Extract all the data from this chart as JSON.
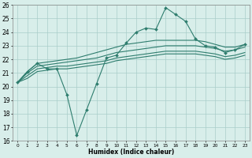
{
  "x": [
    0,
    1,
    2,
    3,
    4,
    5,
    6,
    7,
    8,
    9,
    10,
    11,
    12,
    13,
    14,
    15,
    16,
    17,
    18,
    19,
    20,
    21,
    22,
    23
  ],
  "line_jagged": [
    20.3,
    21.1,
    21.7,
    21.3,
    21.3,
    19.4,
    16.4,
    18.3,
    20.2,
    22.1,
    22.3,
    23.2,
    24.0,
    24.3,
    24.2,
    25.8,
    25.3,
    24.8,
    23.5,
    23.0,
    22.9,
    22.5,
    22.7,
    23.1
  ],
  "line_top": [
    20.3,
    21.1,
    21.7,
    21.8,
    21.9,
    22.0,
    22.1,
    22.3,
    22.5,
    22.7,
    22.9,
    23.1,
    23.2,
    23.3,
    23.4,
    23.4,
    23.4,
    23.4,
    23.4,
    23.3,
    23.1,
    22.9,
    22.9,
    23.1
  ],
  "line_upper": [
    20.3,
    21.0,
    21.5,
    21.6,
    21.7,
    21.8,
    21.9,
    22.0,
    22.1,
    22.3,
    22.5,
    22.6,
    22.7,
    22.8,
    22.9,
    23.0,
    23.0,
    23.0,
    23.0,
    22.9,
    22.8,
    22.6,
    22.7,
    22.9
  ],
  "line_lower": [
    20.3,
    20.8,
    21.3,
    21.4,
    21.5,
    21.5,
    21.6,
    21.7,
    21.8,
    21.9,
    22.1,
    22.2,
    22.3,
    22.4,
    22.5,
    22.6,
    22.6,
    22.6,
    22.6,
    22.5,
    22.4,
    22.2,
    22.3,
    22.5
  ],
  "line_bottom": [
    20.3,
    20.6,
    21.1,
    21.2,
    21.3,
    21.3,
    21.4,
    21.5,
    21.6,
    21.7,
    21.9,
    22.0,
    22.1,
    22.2,
    22.3,
    22.4,
    22.4,
    22.4,
    22.4,
    22.3,
    22.2,
    22.0,
    22.1,
    22.3
  ],
  "color": "#2e7d6e",
  "bg_color": "#d8eeea",
  "grid_color": "#aaceca",
  "xlabel": "Humidex (Indice chaleur)",
  "ylim": [
    16,
    26
  ],
  "xlim": [
    -0.5,
    23.5
  ],
  "yticks": [
    16,
    17,
    18,
    19,
    20,
    21,
    22,
    23,
    24,
    25,
    26
  ],
  "xticks": [
    0,
    1,
    2,
    3,
    4,
    5,
    6,
    7,
    8,
    9,
    10,
    11,
    12,
    13,
    14,
    15,
    16,
    17,
    18,
    19,
    20,
    21,
    22,
    23
  ]
}
